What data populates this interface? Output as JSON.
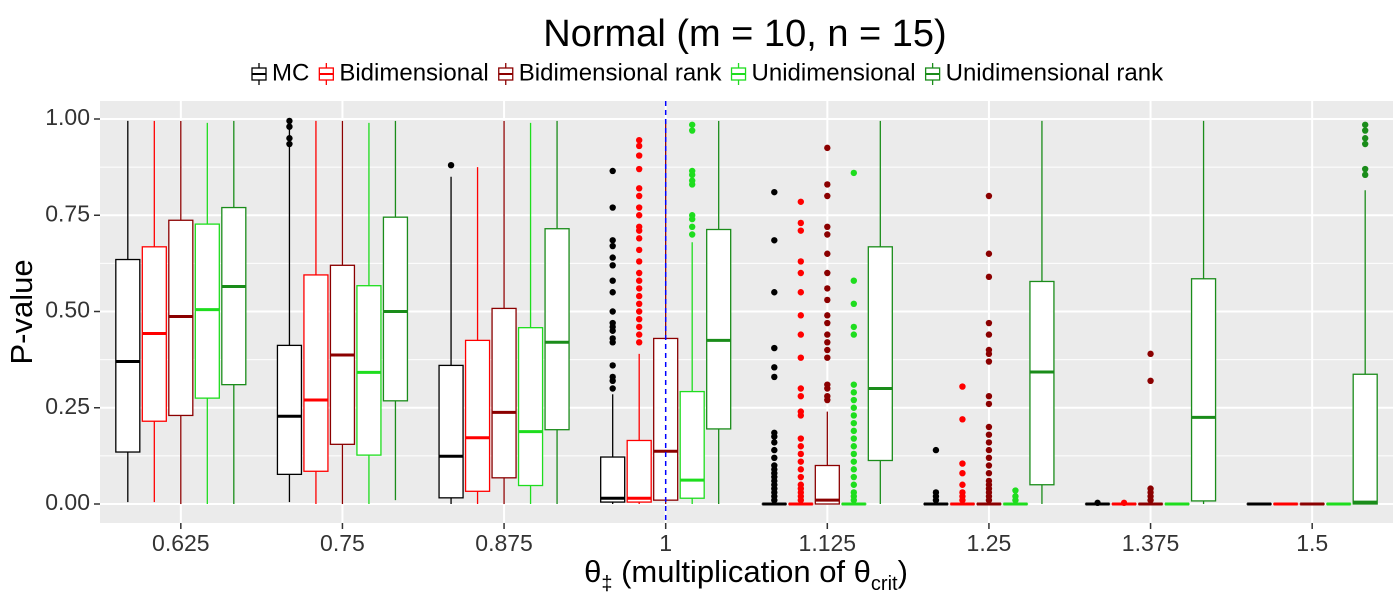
{
  "chart_data": {
    "type": "boxplot",
    "title": "Normal (m = 10, n = 15)",
    "xlabel": {
      "symbol": "θ",
      "symbol_subscript": "‡",
      "text": " (multiplication of ",
      "ref_symbol": "θ",
      "ref_subscript": "crit",
      "close": ")"
    },
    "ylabel": "P-value",
    "ylim": [
      0,
      1
    ],
    "yticks": [
      "0.00",
      "0.25",
      "0.50",
      "0.75",
      "1.00"
    ],
    "ytick_values": [
      0,
      0.25,
      0.5,
      0.75,
      1.0
    ],
    "categories": [
      "0.625",
      "0.75",
      "0.875",
      "1",
      "1.125",
      "1.25",
      "1.375",
      "1.5"
    ],
    "reference_line": {
      "x": "1",
      "color": "#0000ff",
      "style": "dashed"
    },
    "series": [
      {
        "name": "MC",
        "color": "#000000",
        "boxes": [
          {
            "q1": 0.135,
            "median": 0.37,
            "q3": 0.635,
            "lo": 0.005,
            "hi": 0.995,
            "outliers": []
          },
          {
            "q1": 0.077,
            "median": 0.228,
            "q3": 0.412,
            "lo": 0.005,
            "hi": 0.98,
            "outliers": [
              0.995,
              0.98,
              0.95,
              0.935
            ]
          },
          {
            "q1": 0.016,
            "median": 0.124,
            "q3": 0.36,
            "lo": 0.0,
            "hi": 0.85,
            "outliers": [
              0.88
            ]
          },
          {
            "q1": 0.005,
            "median": 0.015,
            "q3": 0.122,
            "lo": 0.0,
            "hi": 0.285,
            "outliers": [
              0.865,
              0.77,
              0.685,
              0.67,
              0.64,
              0.62,
              0.58,
              0.55,
              0.5,
              0.47,
              0.46,
              0.45,
              0.43,
              0.42,
              0.36,
              0.33,
              0.32,
              0.3
            ]
          },
          {
            "q1": 0.0,
            "median": 0.0,
            "q3": 0.0,
            "lo": 0.0,
            "hi": 0.0,
            "outliers": [
              0.81,
              0.685,
              0.55,
              0.405,
              0.355,
              0.33,
              0.185,
              0.175,
              0.16,
              0.14,
              0.12,
              0.1,
              0.09,
              0.08,
              0.07,
              0.06,
              0.05,
              0.04,
              0.03,
              0.02,
              0.01
            ]
          },
          {
            "q1": 0.0,
            "median": 0.0,
            "q3": 0.0,
            "lo": 0.0,
            "hi": 0.0,
            "outliers": [
              0.14,
              0.03,
              0.02,
              0.01
            ]
          },
          {
            "q1": 0.0,
            "median": 0.0,
            "q3": 0.0,
            "lo": 0.0,
            "hi": 0.0,
            "outliers": [
              0.003
            ]
          },
          {
            "q1": 0.0,
            "median": 0.0,
            "q3": 0.0,
            "lo": 0.0,
            "hi": 0.0,
            "outliers": []
          }
        ]
      },
      {
        "name": "Bidimensional",
        "color": "#ff0000",
        "boxes": [
          {
            "q1": 0.215,
            "median": 0.443,
            "q3": 0.668,
            "lo": 0.005,
            "hi": 0.995,
            "outliers": []
          },
          {
            "q1": 0.085,
            "median": 0.27,
            "q3": 0.595,
            "lo": 0.0,
            "hi": 0.995,
            "outliers": []
          },
          {
            "q1": 0.033,
            "median": 0.172,
            "q3": 0.425,
            "lo": 0.0,
            "hi": 0.875,
            "outliers": []
          },
          {
            "q1": 0.005,
            "median": 0.015,
            "q3": 0.165,
            "lo": 0.0,
            "hi": 0.39,
            "outliers": [
              0.945,
              0.93,
              0.905,
              0.87,
              0.82,
              0.8,
              0.77,
              0.75,
              0.72,
              0.71,
              0.69,
              0.66,
              0.63,
              0.6,
              0.58,
              0.56,
              0.54,
              0.52,
              0.5,
              0.48,
              0.46,
              0.44,
              0.42
            ]
          },
          {
            "q1": 0.0,
            "median": 0.0,
            "q3": 0.0,
            "lo": 0.0,
            "hi": 0.0,
            "outliers": [
              0.785,
              0.73,
              0.71,
              0.63,
              0.6,
              0.55,
              0.49,
              0.44,
              0.38,
              0.3,
              0.28,
              0.24,
              0.23,
              0.17,
              0.15,
              0.13,
              0.11,
              0.09,
              0.07,
              0.05,
              0.04,
              0.03,
              0.02,
              0.01
            ]
          },
          {
            "q1": 0.0,
            "median": 0.0,
            "q3": 0.0,
            "lo": 0.0,
            "hi": 0.0,
            "outliers": [
              0.305,
              0.22,
              0.105,
              0.08,
              0.05,
              0.03,
              0.02,
              0.01
            ]
          },
          {
            "q1": 0.0,
            "median": 0.0,
            "q3": 0.0,
            "lo": 0.0,
            "hi": 0.0,
            "outliers": [
              0.003
            ]
          },
          {
            "q1": 0.0,
            "median": 0.0,
            "q3": 0.0,
            "lo": 0.0,
            "hi": 0.0,
            "outliers": []
          }
        ]
      },
      {
        "name": "Bidimensional rank",
        "color": "#8b0000",
        "boxes": [
          {
            "q1": 0.23,
            "median": 0.487,
            "q3": 0.737,
            "lo": 0.0,
            "hi": 0.995,
            "outliers": []
          },
          {
            "q1": 0.155,
            "median": 0.387,
            "q3": 0.62,
            "lo": 0.0,
            "hi": 0.995,
            "outliers": []
          },
          {
            "q1": 0.068,
            "median": 0.238,
            "q3": 0.508,
            "lo": 0.0,
            "hi": 0.995,
            "outliers": []
          },
          {
            "q1": 0.01,
            "median": 0.137,
            "q3": 0.43,
            "lo": 0.0,
            "hi": 0.995,
            "outliers": []
          },
          {
            "q1": 0.0,
            "median": 0.01,
            "q3": 0.1,
            "lo": 0.0,
            "hi": 0.24,
            "outliers": [
              0.925,
              0.83,
              0.8,
              0.72,
              0.7,
              0.65,
              0.6,
              0.56,
              0.53,
              0.49,
              0.47,
              0.44,
              0.42,
              0.4,
              0.38,
              0.31,
              0.3,
              0.28,
              0.27
            ]
          },
          {
            "q1": 0.0,
            "median": 0.0,
            "q3": 0.0,
            "lo": 0.0,
            "hi": 0.0,
            "outliers": [
              0.8,
              0.65,
              0.59,
              0.47,
              0.44,
              0.4,
              0.39,
              0.37,
              0.28,
              0.26,
              0.2,
              0.18,
              0.16,
              0.14,
              0.12,
              0.1,
              0.08,
              0.06,
              0.05,
              0.04,
              0.03,
              0.02,
              0.01
            ]
          },
          {
            "q1": 0.0,
            "median": 0.0,
            "q3": 0.0,
            "lo": 0.0,
            "hi": 0.0,
            "outliers": [
              0.39,
              0.32,
              0.04,
              0.03,
              0.02,
              0.01
            ]
          },
          {
            "q1": 0.0,
            "median": 0.0,
            "q3": 0.0,
            "lo": 0.0,
            "hi": 0.0,
            "outliers": []
          }
        ]
      },
      {
        "name": "Unidimensional",
        "color": "#1edd1e",
        "boxes": [
          {
            "q1": 0.275,
            "median": 0.505,
            "q3": 0.727,
            "lo": 0.0,
            "hi": 0.99,
            "outliers": []
          },
          {
            "q1": 0.127,
            "median": 0.342,
            "q3": 0.567,
            "lo": 0.0,
            "hi": 0.99,
            "outliers": []
          },
          {
            "q1": 0.048,
            "median": 0.188,
            "q3": 0.458,
            "lo": 0.0,
            "hi": 0.99,
            "outliers": []
          },
          {
            "q1": 0.015,
            "median": 0.062,
            "q3": 0.292,
            "lo": 0.0,
            "hi": 0.68,
            "outliers": [
              0.985,
              0.97,
              0.865,
              0.855,
              0.84,
              0.83,
              0.75,
              0.74,
              0.72,
              0.7
            ]
          },
          {
            "q1": 0.0,
            "median": 0.0,
            "q3": 0.0,
            "lo": 0.0,
            "hi": 0.0,
            "outliers": [
              0.86,
              0.58,
              0.52,
              0.46,
              0.44,
              0.31,
              0.29,
              0.27,
              0.25,
              0.23,
              0.21,
              0.19,
              0.17,
              0.15,
              0.13,
              0.11,
              0.09,
              0.07,
              0.05,
              0.03,
              0.02,
              0.01
            ]
          },
          {
            "q1": 0.0,
            "median": 0.0,
            "q3": 0.0,
            "lo": 0.0,
            "hi": 0.0,
            "outliers": [
              0.035,
              0.02,
              0.01
            ]
          },
          {
            "q1": 0.0,
            "median": 0.0,
            "q3": 0.0,
            "lo": 0.0,
            "hi": 0.0,
            "outliers": []
          },
          {
            "q1": 0.0,
            "median": 0.0,
            "q3": 0.0,
            "lo": 0.0,
            "hi": 0.0,
            "outliers": []
          }
        ]
      },
      {
        "name": "Unidimensional rank",
        "color": "#1a8c1a",
        "boxes": [
          {
            "q1": 0.31,
            "median": 0.565,
            "q3": 0.77,
            "lo": 0.0,
            "hi": 0.995,
            "outliers": []
          },
          {
            "q1": 0.268,
            "median": 0.5,
            "q3": 0.745,
            "lo": 0.01,
            "hi": 0.995,
            "outliers": []
          },
          {
            "q1": 0.193,
            "median": 0.42,
            "q3": 0.715,
            "lo": 0.0,
            "hi": 0.995,
            "outliers": []
          },
          {
            "q1": 0.195,
            "median": 0.425,
            "q3": 0.713,
            "lo": 0.0,
            "hi": 0.995,
            "outliers": []
          },
          {
            "q1": 0.113,
            "median": 0.3,
            "q3": 0.668,
            "lo": 0.0,
            "hi": 0.995,
            "outliers": []
          },
          {
            "q1": 0.05,
            "median": 0.343,
            "q3": 0.578,
            "lo": 0.0,
            "hi": 0.995,
            "outliers": []
          },
          {
            "q1": 0.008,
            "median": 0.225,
            "q3": 0.585,
            "lo": 0.0,
            "hi": 0.995,
            "outliers": []
          },
          {
            "q1": 0.0,
            "median": 0.005,
            "q3": 0.337,
            "lo": 0.0,
            "hi": 0.815,
            "outliers": [
              0.985,
              0.97,
              0.95,
              0.935,
              0.87,
              0.855
            ]
          }
        ]
      }
    ]
  }
}
